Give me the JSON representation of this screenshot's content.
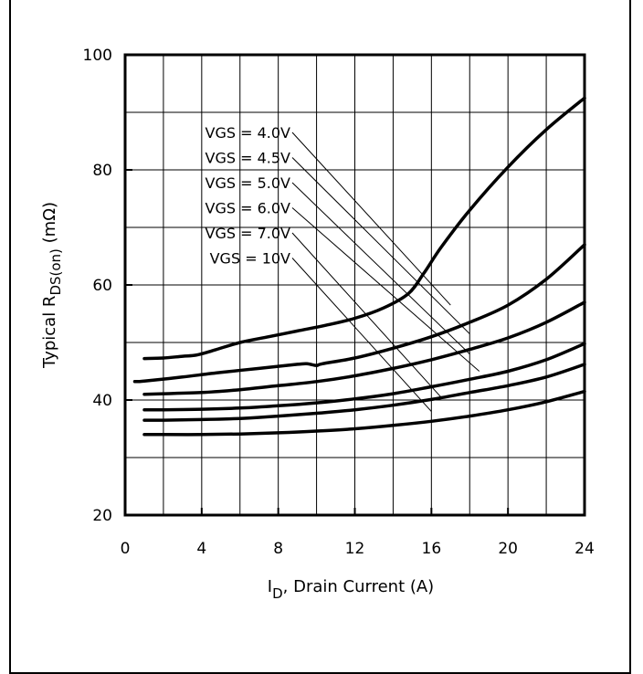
{
  "chart_data": {
    "type": "line",
    "title": "",
    "xlabel": {
      "main": "I",
      "sub": "D",
      "rest": ", Drain Current (A)"
    },
    "ylabel": {
      "main": "Typical R",
      "sub": "DS(on)",
      "rest": " (mΩ)"
    },
    "xlim": [
      0,
      24
    ],
    "ylim": [
      20,
      100
    ],
    "xticks": [
      "0",
      "4",
      "8",
      "12",
      "16",
      "20",
      "24"
    ],
    "yticks": [
      "20",
      "40",
      "60",
      "80",
      "100"
    ],
    "grid": true,
    "legend_placement": "top-left (inside plot, leader lines to curves)",
    "series": [
      {
        "name": "VGS = 4.0V",
        "label_anchor": [
          17.0,
          56.5
        ],
        "x": [
          1,
          2,
          3,
          3.7,
          4.5,
          6,
          7.5,
          9,
          10.5,
          12,
          13.5,
          14.8,
          15.6,
          16.5,
          18,
          20,
          22,
          24
        ],
        "y": [
          47.2,
          47.3,
          47.6,
          47.8,
          48.5,
          50.0,
          51.0,
          52.0,
          53.0,
          54.2,
          56.0,
          58.5,
          62.0,
          66.5,
          73.0,
          80.5,
          87.0,
          92.5
        ]
      },
      {
        "name": "VGS = 4.5V",
        "label_anchor": [
          18.0,
          51.5
        ],
        "x": [
          0.5,
          1,
          3,
          5,
          7,
          9,
          9.5,
          10,
          10.3,
          12,
          14,
          16,
          18,
          20,
          22,
          24
        ],
        "y": [
          43.2,
          43.3,
          44.0,
          44.8,
          45.5,
          46.2,
          46.3,
          46.0,
          46.3,
          47.3,
          49.0,
          51.0,
          53.5,
          56.5,
          61.0,
          67.0
        ]
      },
      {
        "name": "VGS = 5.0V",
        "label_anchor": [
          18.0,
          48.0
        ],
        "x": [
          1,
          2,
          4,
          6,
          8,
          10,
          12,
          14,
          16,
          18,
          20,
          22,
          24
        ],
        "y": [
          41.0,
          41.1,
          41.3,
          41.8,
          42.5,
          43.2,
          44.2,
          45.5,
          47.0,
          48.8,
          50.8,
          53.5,
          57.0
        ]
      },
      {
        "name": "VGS = 6.0V",
        "label_anchor": [
          18.5,
          45.0
        ],
        "x": [
          1,
          2,
          4,
          6,
          8,
          10,
          12,
          14,
          16,
          18,
          20,
          22,
          24
        ],
        "y": [
          38.3,
          38.3,
          38.4,
          38.6,
          39.0,
          39.5,
          40.2,
          41.1,
          42.3,
          43.6,
          45.0,
          47.0,
          49.8
        ]
      },
      {
        "name": "VGS = 7.0V",
        "label_anchor": [
          16.5,
          40.5
        ],
        "x": [
          1,
          2,
          4,
          6,
          8,
          10,
          12,
          14,
          16,
          18,
          20,
          22,
          24
        ],
        "y": [
          36.5,
          36.5,
          36.6,
          36.8,
          37.2,
          37.7,
          38.3,
          39.1,
          40.1,
          41.3,
          42.5,
          44.0,
          46.2
        ]
      },
      {
        "name": "VGS = 10V",
        "label_anchor": [
          16.0,
          38.0
        ],
        "x": [
          1,
          2,
          4,
          6,
          8,
          10,
          12,
          14,
          16,
          18,
          20,
          22,
          24
        ],
        "y": [
          34.0,
          34.0,
          34.0,
          34.1,
          34.3,
          34.6,
          35.0,
          35.6,
          36.3,
          37.2,
          38.3,
          39.7,
          41.5
        ]
      }
    ]
  }
}
